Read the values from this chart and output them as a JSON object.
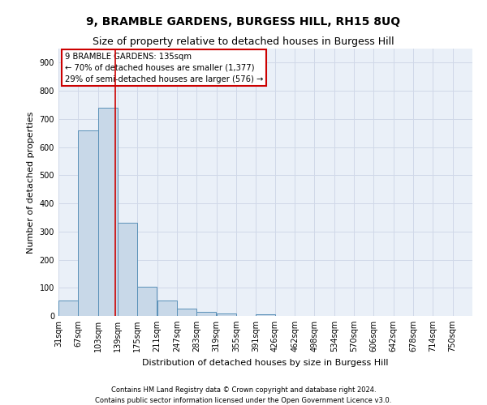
{
  "title1": "9, BRAMBLE GARDENS, BURGESS HILL, RH15 8UQ",
  "title2": "Size of property relative to detached houses in Burgess Hill",
  "xlabel": "Distribution of detached houses by size in Burgess Hill",
  "ylabel": "Number of detached properties",
  "footer1": "Contains HM Land Registry data © Crown copyright and database right 2024.",
  "footer2": "Contains public sector information licensed under the Open Government Licence v3.0.",
  "bin_labels": [
    "31sqm",
    "67sqm",
    "103sqm",
    "139sqm",
    "175sqm",
    "211sqm",
    "247sqm",
    "283sqm",
    "319sqm",
    "355sqm",
    "391sqm",
    "426sqm",
    "462sqm",
    "498sqm",
    "534sqm",
    "570sqm",
    "606sqm",
    "642sqm",
    "678sqm",
    "714sqm",
    "750sqm"
  ],
  "bar_values": [
    55,
    660,
    740,
    330,
    105,
    55,
    25,
    13,
    8,
    0,
    7,
    0,
    0,
    0,
    0,
    0,
    0,
    0,
    0,
    0,
    0
  ],
  "bar_color": "#c8d8e8",
  "bar_edge_color": "#5a90b8",
  "property_line_x": 135,
  "bin_edges": [
    31,
    67,
    103,
    139,
    175,
    211,
    247,
    283,
    319,
    355,
    391,
    426,
    462,
    498,
    534,
    570,
    606,
    642,
    678,
    714,
    750
  ],
  "bin_width": 36,
  "annotation_line1": "9 BRAMBLE GARDENS: 135sqm",
  "annotation_line2": "← 70% of detached houses are smaller (1,377)",
  "annotation_line3": "29% of semi-detached houses are larger (576) →",
  "annotation_box_color": "#cc0000",
  "ylim": [
    0,
    950
  ],
  "yticks": [
    0,
    100,
    200,
    300,
    400,
    500,
    600,
    700,
    800,
    900
  ],
  "grid_color": "#d0d8e8",
  "bg_color": "#eaf0f8",
  "title1_fontsize": 10,
  "title2_fontsize": 9,
  "ylabel_fontsize": 8,
  "xlabel_fontsize": 8,
  "footer_fontsize": 6,
  "tick_fontsize": 7
}
